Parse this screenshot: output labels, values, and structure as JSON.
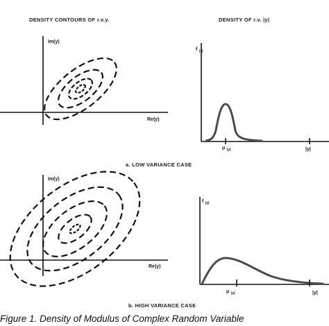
{
  "headers": {
    "left": "DENSITY CONTOURS OF r.v.y.",
    "right": "DENSITY OF r.v. |y|"
  },
  "panel_a": {
    "caption": "a.  LOW VARIANCE CASE",
    "im_label": "Im(y)",
    "re_label": "Re(y)",
    "f_label": "f",
    "f_sub": "|y|",
    "mu_label": "μ",
    "mu_sub": "|y|",
    "x_label": "|y|"
  },
  "panel_b": {
    "caption": "b.  HIGH VARIANCE CASE",
    "im_label": "Im(y)",
    "re_label": "Re(y)",
    "f_label": "f",
    "f_sub": "|y|",
    "mu_label": "μ",
    "mu_sub": "|y|",
    "x_label": "|y|"
  },
  "figure_caption": "Figure 1. Density of Modulus of Complex Random Variable",
  "colors": {
    "ink": "#111111",
    "curve": "#4a4a4a"
  }
}
